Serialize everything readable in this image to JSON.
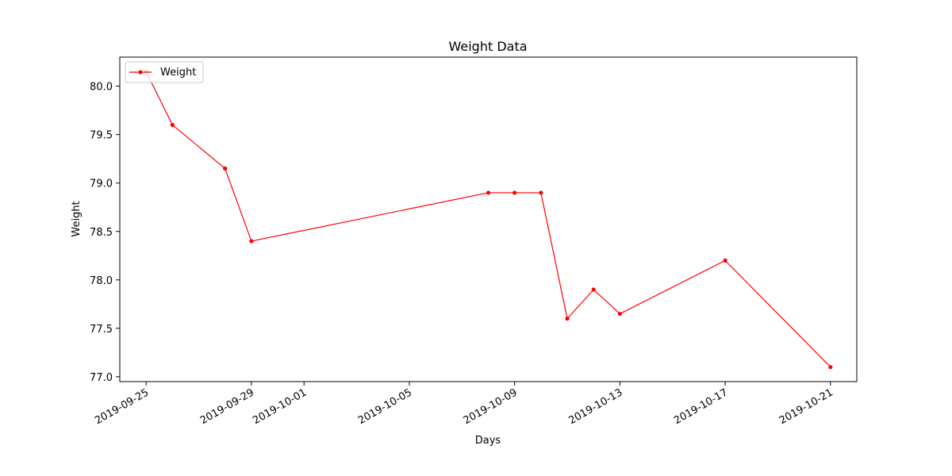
{
  "chart_data": {
    "type": "line",
    "title": "Weight Data",
    "xlabel": "Days",
    "ylabel": "Weight",
    "x_axis_type": "date",
    "xlim": [
      "2019-09-24",
      "2019-10-22"
    ],
    "ylim": [
      76.95,
      80.3
    ],
    "x_ticks": [
      "2019-09-25",
      "2019-09-29",
      "2019-10-01",
      "2019-10-05",
      "2019-10-09",
      "2019-10-13",
      "2019-10-17",
      "2019-10-21"
    ],
    "y_ticks": [
      "77.0",
      "77.5",
      "78.0",
      "78.5",
      "79.0",
      "79.5",
      "80.0"
    ],
    "grid": false,
    "legend_position": "upper-left",
    "series": [
      {
        "name": "Weight",
        "color": "#ff0000",
        "marker": "circle",
        "points": [
          {
            "x": "2019-09-25",
            "y": 80.15
          },
          {
            "x": "2019-09-26",
            "y": 79.6
          },
          {
            "x": "2019-09-28",
            "y": 79.15
          },
          {
            "x": "2019-09-29",
            "y": 78.4
          },
          {
            "x": "2019-10-08",
            "y": 78.9
          },
          {
            "x": "2019-10-09",
            "y": 78.9
          },
          {
            "x": "2019-10-10",
            "y": 78.9
          },
          {
            "x": "2019-10-11",
            "y": 77.6
          },
          {
            "x": "2019-10-12",
            "y": 77.9
          },
          {
            "x": "2019-10-13",
            "y": 77.65
          },
          {
            "x": "2019-10-17",
            "y": 78.2
          },
          {
            "x": "2019-10-21",
            "y": 77.1
          }
        ]
      }
    ]
  }
}
